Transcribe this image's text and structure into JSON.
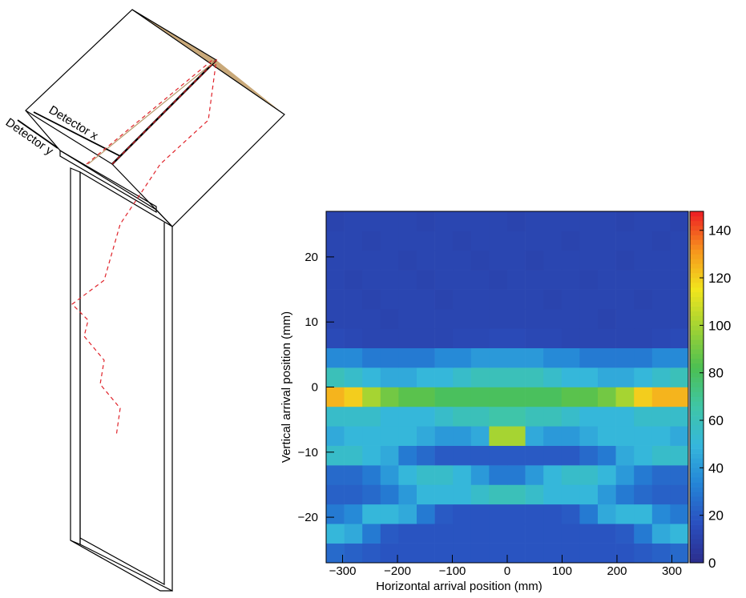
{
  "diagram": {
    "labels": [
      "Detector x",
      "Detector y"
    ]
  },
  "chart_data": {
    "type": "heatmap",
    "xlabel": "Horizontal arrival position (mm)",
    "ylabel": "Vertical arrival position (mm)",
    "xbins": [
      -330,
      -297,
      -264,
      -231,
      -198,
      -165,
      -132,
      -99,
      -66,
      -33,
      0,
      33,
      66,
      99,
      132,
      165,
      198,
      231,
      264,
      297,
      330
    ],
    "ybins": [
      -27,
      -24,
      -21,
      -18,
      -15,
      -12,
      -9,
      -6,
      -3,
      0,
      3,
      6,
      9,
      12,
      15,
      18,
      21,
      24,
      27
    ],
    "z": [
      [
        25,
        22,
        20,
        18,
        18,
        18,
        18,
        18,
        18,
        18,
        18,
        18,
        18,
        18,
        18,
        18,
        18,
        20,
        22,
        25
      ],
      [
        50,
        45,
        30,
        20,
        18,
        18,
        18,
        18,
        18,
        18,
        18,
        18,
        18,
        18,
        18,
        18,
        20,
        30,
        45,
        50
      ],
      [
        30,
        35,
        50,
        50,
        45,
        30,
        20,
        18,
        18,
        18,
        18,
        18,
        18,
        20,
        30,
        45,
        50,
        50,
        35,
        30
      ],
      [
        22,
        22,
        25,
        30,
        40,
        50,
        50,
        50,
        55,
        60,
        60,
        55,
        50,
        50,
        50,
        40,
        30,
        25,
        22,
        22
      ],
      [
        25,
        25,
        30,
        40,
        50,
        55,
        55,
        50,
        40,
        30,
        30,
        40,
        50,
        55,
        55,
        50,
        40,
        30,
        25,
        25
      ],
      [
        55,
        55,
        50,
        45,
        30,
        25,
        20,
        20,
        20,
        20,
        20,
        20,
        20,
        20,
        25,
        30,
        45,
        50,
        55,
        55
      ],
      [
        45,
        50,
        50,
        50,
        50,
        45,
        40,
        40,
        45,
        100,
        100,
        45,
        40,
        40,
        45,
        50,
        50,
        50,
        50,
        45
      ],
      [
        55,
        55,
        55,
        50,
        50,
        50,
        55,
        60,
        60,
        65,
        65,
        60,
        60,
        55,
        50,
        50,
        50,
        55,
        55,
        55
      ],
      [
        125,
        120,
        100,
        90,
        85,
        85,
        80,
        80,
        80,
        80,
        80,
        80,
        80,
        85,
        85,
        90,
        100,
        120,
        125,
        125
      ],
      [
        60,
        55,
        50,
        45,
        45,
        50,
        50,
        55,
        60,
        60,
        60,
        60,
        55,
        50,
        50,
        45,
        45,
        50,
        55,
        60
      ],
      [
        35,
        35,
        30,
        30,
        30,
        30,
        35,
        35,
        40,
        40,
        40,
        40,
        35,
        35,
        30,
        30,
        30,
        30,
        35,
        35
      ],
      [
        14,
        13,
        12,
        12,
        12,
        12,
        12,
        13,
        13,
        14,
        14,
        13,
        13,
        12,
        12,
        12,
        12,
        12,
        13,
        14
      ],
      [
        12,
        12,
        12,
        11,
        12,
        12,
        12,
        12,
        12,
        12,
        12,
        12,
        12,
        12,
        12,
        11,
        12,
        12,
        12,
        12
      ],
      [
        12,
        12,
        11,
        12,
        12,
        12,
        11,
        12,
        12,
        12,
        12,
        12,
        11,
        12,
        12,
        12,
        12,
        11,
        12,
        12
      ],
      [
        12,
        11,
        12,
        12,
        12,
        11,
        12,
        12,
        12,
        11,
        12,
        12,
        12,
        12,
        11,
        12,
        12,
        12,
        12,
        12
      ],
      [
        12,
        12,
        12,
        12,
        11,
        12,
        12,
        12,
        11,
        12,
        12,
        11,
        12,
        12,
        12,
        12,
        11,
        12,
        12,
        12
      ],
      [
        12,
        12,
        11,
        12,
        12,
        12,
        12,
        11,
        12,
        12,
        12,
        12,
        12,
        11,
        12,
        12,
        12,
        12,
        11,
        12
      ],
      [
        11,
        12,
        12,
        12,
        12,
        11,
        12,
        12,
        12,
        12,
        11,
        12,
        12,
        12,
        12,
        12,
        11,
        12,
        12,
        11
      ]
    ],
    "xlim": [
      -330,
      330
    ],
    "ylim": [
      -27,
      27
    ],
    "xticks": [
      {
        "value": -300,
        "label": "−300"
      },
      {
        "value": -200,
        "label": "−200"
      },
      {
        "value": -100,
        "label": "−100"
      },
      0,
      100,
      200,
      300
    ],
    "yticks": [
      {
        "value": -20,
        "label": "−20"
      },
      {
        "value": -10,
        "label": "−10"
      },
      0,
      10,
      20
    ],
    "zlim": [
      0,
      148
    ],
    "zticks": [
      0,
      20,
      40,
      60,
      80,
      100,
      120,
      140
    ],
    "colorscale": [
      "#2b2d8c",
      "#2a4fbf",
      "#2483d6",
      "#35b6dc",
      "#3fc6a6",
      "#4cbf52",
      "#9fd234",
      "#f1e51d",
      "#f7941d",
      "#ed1c24"
    ]
  }
}
